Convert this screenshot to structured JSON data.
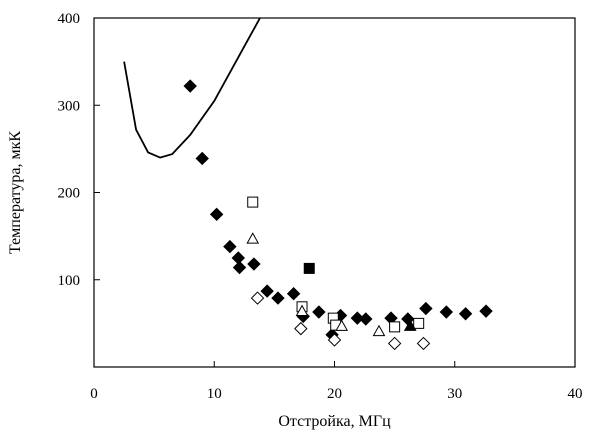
{
  "chart_data": {
    "type": "scatter",
    "title": "",
    "xlabel": "Отстройка, МГц",
    "ylabel": "Температура, мкК",
    "xlim": [
      0,
      40
    ],
    "ylim": [
      0,
      400
    ],
    "xticks": [
      "0",
      "10",
      "20",
      "30",
      "40"
    ],
    "yticks": [
      "100",
      "200",
      "300",
      "400"
    ],
    "grid": false,
    "legend": "none",
    "series": [
      {
        "type": "line",
        "marker": "none",
        "color": "#000000",
        "x": [
          2.5,
          3.5,
          4.5,
          5.5,
          6.5,
          8,
          10,
          12,
          14,
          16.3
        ],
        "y": [
          350,
          272,
          246,
          240,
          244,
          266,
          305,
          355,
          405,
          458
        ]
      },
      {
        "type": "scatter",
        "marker": "diamond-filled",
        "color": "#000000",
        "x": [
          8,
          9,
          10.2,
          11.3,
          12,
          12.1,
          13.3,
          14.4,
          15.3,
          16.6,
          17.4,
          18.7,
          19.8,
          20.5,
          21.9,
          22.6,
          24.7,
          26.1,
          27.6,
          29.3,
          30.9,
          32.6
        ],
        "y": [
          322,
          239,
          175,
          138,
          125,
          114,
          118,
          87,
          79,
          84,
          58,
          63,
          37,
          59,
          56,
          55,
          56,
          55,
          67,
          63,
          61,
          64
        ]
      },
      {
        "type": "scatter",
        "marker": "square-open",
        "color": "#000000",
        "x": [
          13.2,
          17.3,
          19.9,
          20.1,
          25,
          27
        ],
        "y": [
          189,
          69,
          56,
          48,
          46,
          50
        ]
      },
      {
        "type": "scatter",
        "marker": "square-filled",
        "color": "#000000",
        "x": [
          17.9
        ],
        "y": [
          113
        ]
      },
      {
        "type": "scatter",
        "marker": "triangle-open",
        "color": "#000000",
        "x": [
          13.2,
          17.3,
          20.6,
          23.7
        ],
        "y": [
          147,
          64,
          47,
          41
        ]
      },
      {
        "type": "scatter",
        "marker": "triangle-filled",
        "color": "#000000",
        "x": [
          26.3
        ],
        "y": [
          47
        ]
      },
      {
        "type": "scatter",
        "marker": "diamond-open",
        "color": "#000000",
        "x": [
          13.6,
          17.2,
          20,
          25,
          27.4
        ],
        "y": [
          79,
          44,
          31,
          27,
          27
        ]
      }
    ]
  }
}
